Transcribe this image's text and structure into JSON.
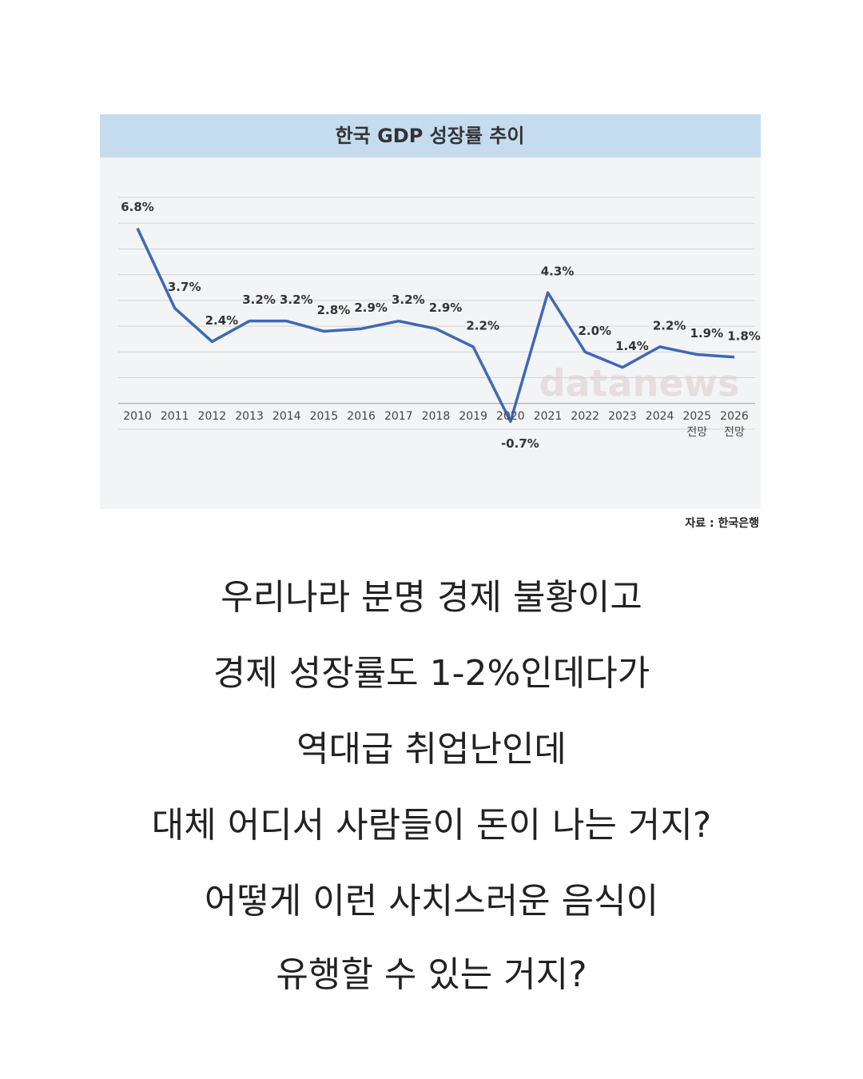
{
  "chart_data": {
    "type": "line",
    "title": "한국 GDP 성장률 추이",
    "categories": [
      "2010",
      "2011",
      "2012",
      "2013",
      "2014",
      "2015",
      "2016",
      "2017",
      "2018",
      "2019",
      "2020",
      "2021",
      "2022",
      "2023",
      "2024",
      "2025\n전망",
      "2026\n전망"
    ],
    "values": [
      6.8,
      3.7,
      2.4,
      3.2,
      3.2,
      2.8,
      2.9,
      3.2,
      2.9,
      2.2,
      -0.7,
      4.3,
      2.0,
      1.4,
      2.2,
      1.9,
      1.8
    ],
    "value_labels": [
      "6.8%",
      "3.7%",
      "2.4%",
      "3.2%",
      "3.2%",
      "2.8%",
      "2.9%",
      "3.2%",
      "2.9%",
      "2.2%",
      "-0.7%",
      "4.3%",
      "2.0%",
      "1.4%",
      "2.2%",
      "1.9%",
      "1.8%"
    ],
    "color": "#3f68b5",
    "ylim": [
      -1,
      8
    ],
    "yticks": [
      -1,
      0,
      1,
      2,
      3,
      4,
      5,
      6,
      7,
      8
    ],
    "grid": true,
    "watermark": "datanews",
    "source": "자료 : 한국은행"
  },
  "caption": {
    "lines": [
      "우리나라 분명 경제 불황이고",
      "경제 성장률도 1-2%인데다가",
      "역대급 취업난인데",
      "대체 어디서 사람들이 돈이 나는 거지?",
      "어떻게 이런 사치스러운 음식이",
      "유행할 수 있는 거지?"
    ]
  }
}
